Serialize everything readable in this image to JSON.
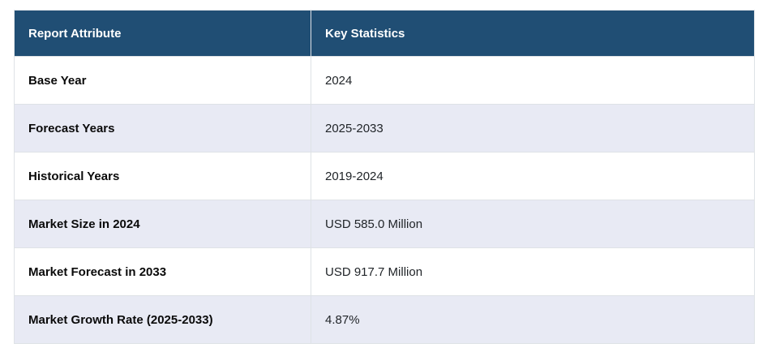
{
  "colors": {
    "header_bg": "#204E74",
    "header_text": "#FFFFFF",
    "row_bg": "#FFFFFF",
    "row_alt_bg": "#E8EAF4",
    "border": "#DEE2E6",
    "label_text": "#0A0A0A",
    "value_text": "#212529"
  },
  "table": {
    "columns": [
      {
        "label": "Report Attribute"
      },
      {
        "label": "Key Statistics"
      }
    ],
    "rows": [
      {
        "attribute": "Base Year",
        "value": "2024"
      },
      {
        "attribute": "Forecast Years",
        "value": "2025-2033"
      },
      {
        "attribute": "Historical Years",
        "value": "2019-2024"
      },
      {
        "attribute": "Market Size in 2024",
        "value": "USD 585.0 Million"
      },
      {
        "attribute": "Market Forecast in 2033",
        "value": "USD 917.7 Million"
      },
      {
        "attribute": "Market Growth Rate (2025-2033)",
        "value": "4.87%"
      }
    ]
  },
  "chart_data": {
    "type": "table",
    "title": "Report Attribute / Key Statistics",
    "columns": [
      "Report Attribute",
      "Key Statistics"
    ],
    "rows": [
      [
        "Base Year",
        "2024"
      ],
      [
        "Forecast Years",
        "2025-2033"
      ],
      [
        "Historical Years",
        "2019-2024"
      ],
      [
        "Market Size in 2024",
        "USD 585.0 Million"
      ],
      [
        "Market Forecast in 2033",
        "USD 917.7 Million"
      ],
      [
        "Market Growth Rate (2025-2033)",
        "4.87%"
      ]
    ],
    "values": {
      "base_year": 2024,
      "forecast_years": [
        2025,
        2033
      ],
      "historical_years": [
        2019,
        2024
      ],
      "market_size_2024_usd_million": 585.0,
      "market_forecast_2033_usd_million": 917.7,
      "market_growth_rate_pct": 4.87
    }
  }
}
